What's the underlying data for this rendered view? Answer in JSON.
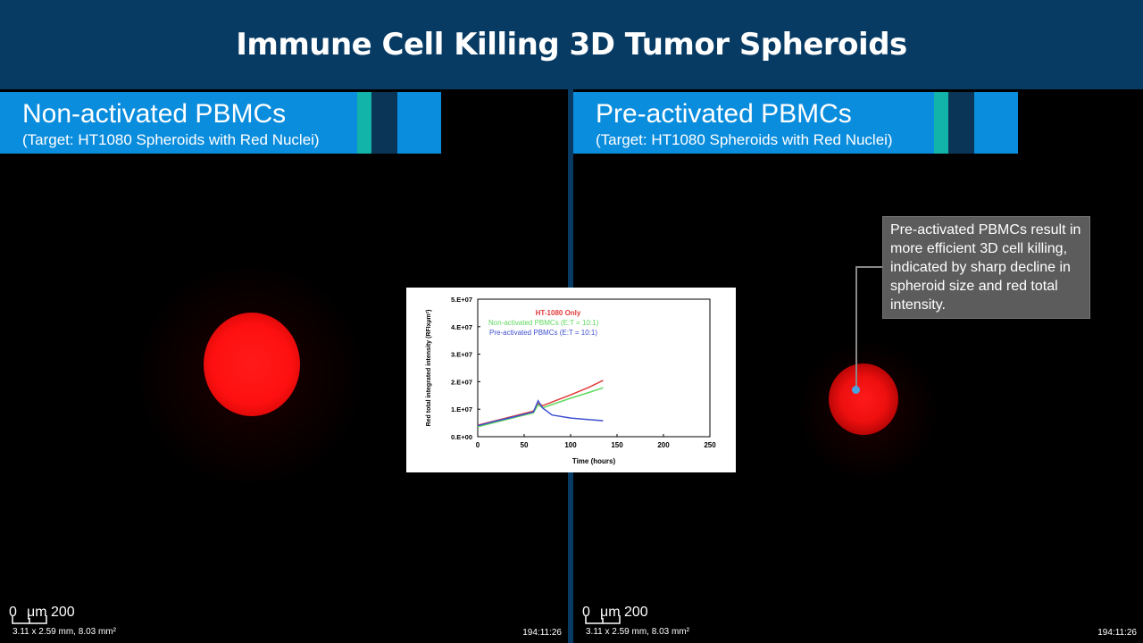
{
  "header": {
    "title": "Immune Cell Killing 3D Tumor Spheroids"
  },
  "left_panel": {
    "label": "Non-activated PBMCs",
    "sublabel": "(Target: HT1080 Spheroids with Red Nuclei)",
    "scale_zero": "0",
    "scale_unit": "μm 200",
    "dims": "3.11 x 2.59 mm, 8.03 mm²",
    "timestamp": "194:11:26"
  },
  "right_panel": {
    "label": "Pre-activated PBMCs",
    "sublabel": "(Target: HT1080 Spheroids with Red Nuclei)",
    "scale_zero": "0",
    "scale_unit": "μm 200",
    "dims": "3.11 x 2.59 mm, 8.03 mm²",
    "timestamp": "194:11:26"
  },
  "callout": {
    "text": "Pre-activated PBMCs result in more efficient 3D cell killing, indicated by sharp decline in spheroid size and red total intensity."
  },
  "colors": {
    "header_bg": "#083b63",
    "label_bg": "#0b8ddd",
    "stripe_teal": "#12b3a8",
    "stripe_navy": "#0a3557",
    "spheroid_red": "#ff1010"
  },
  "chart_data": {
    "type": "line",
    "xlabel": "Time (hours)",
    "ylabel": "Red total integrated intensity (RFIxµm²)",
    "xlim": [
      0,
      250
    ],
    "ylim": [
      0,
      50000000
    ],
    "x_ticks": [
      "0",
      "50",
      "100",
      "150",
      "200",
      "250"
    ],
    "y_ticks": [
      "0.E+00",
      "1.E+07",
      "2.E+07",
      "3.E+07",
      "4.E+07",
      "5.E+07"
    ],
    "grid": false,
    "legend_position": "top-left inside plot",
    "series": [
      {
        "name": "HT-1080 Only",
        "color": "#e23b3b",
        "x": [
          0,
          20,
          40,
          60,
          65,
          70,
          80,
          100,
          120,
          135
        ],
        "y": [
          4200000,
          5900000,
          7600000,
          9300000,
          12000000,
          11300000,
          12600000,
          15200000,
          18000000,
          20500000
        ]
      },
      {
        "name": "Non-activated PBMCs (E:T = 10:1)",
        "color": "#5fd95f",
        "x": [
          0,
          20,
          40,
          60,
          65,
          70,
          80,
          100,
          120,
          135
        ],
        "y": [
          3600000,
          5300000,
          7000000,
          8700000,
          11600000,
          10500000,
          11700000,
          14000000,
          16100000,
          17800000
        ]
      },
      {
        "name": "Pre-activated PBMCs (E:T = 10:1)",
        "color": "#3f4fd0",
        "x": [
          0,
          20,
          40,
          60,
          65,
          70,
          80,
          100,
          120,
          135
        ],
        "y": [
          4000000,
          5700000,
          7300000,
          9000000,
          13100000,
          10400000,
          7900000,
          6800000,
          6200000,
          5800000
        ]
      }
    ]
  }
}
